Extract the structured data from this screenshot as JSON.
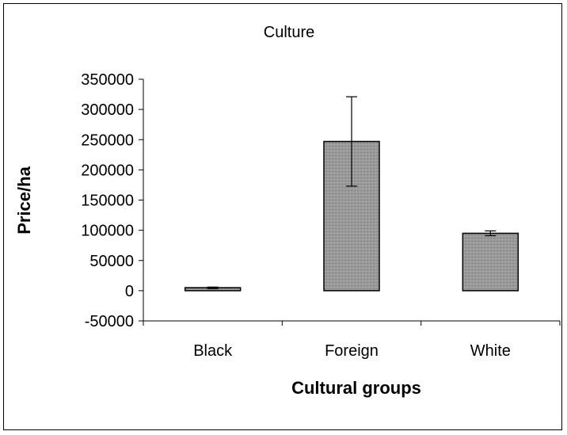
{
  "chart_data": {
    "type": "bar",
    "title": "Culture",
    "xlabel": "Cultural groups",
    "ylabel": "Price/ha",
    "categories": [
      "Black",
      "Foreign",
      "White"
    ],
    "values": [
      5000,
      247000,
      95000
    ],
    "error_low": [
      3500,
      173000,
      91000
    ],
    "error_high": [
      6000,
      321000,
      99000
    ],
    "ylim": [
      -50000,
      350000
    ],
    "yticks": [
      350000,
      300000,
      250000,
      200000,
      150000,
      100000,
      50000,
      0,
      -50000
    ],
    "ytick_labels": [
      "350000",
      "300000",
      "250000",
      "200000",
      "150000",
      "100000",
      "50000",
      "0",
      "-50000"
    ],
    "grid": false,
    "legend": "none",
    "colors": {
      "bar": "#9a9a9a",
      "axis": "#000000"
    }
  }
}
